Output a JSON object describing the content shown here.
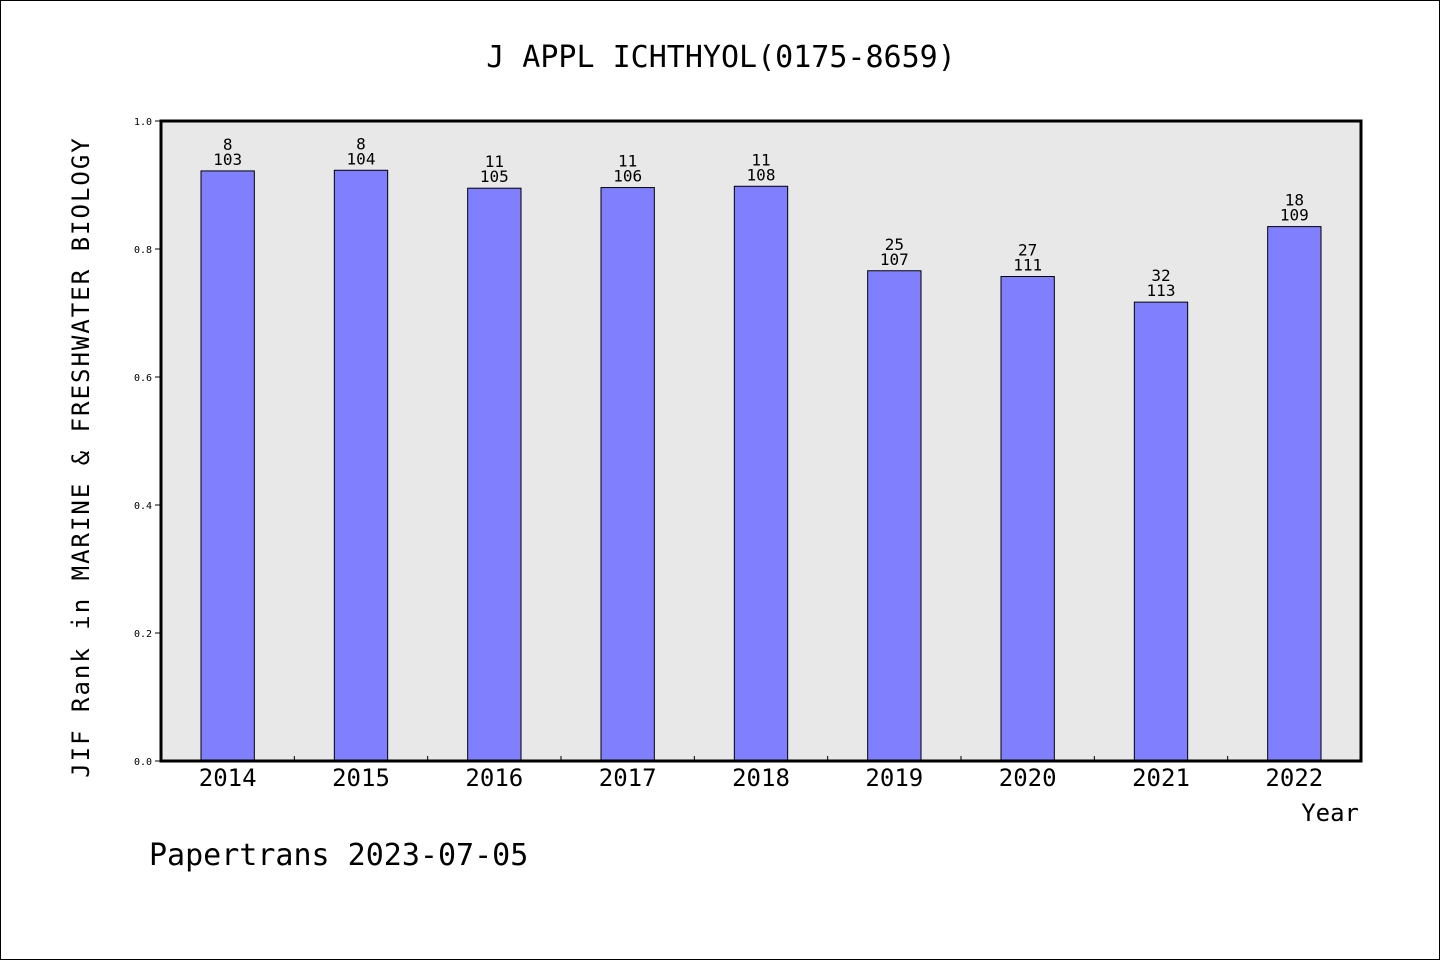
{
  "chart_data": {
    "type": "bar",
    "title": "J APPL ICHTHYOL(0175-8659)",
    "xlabel": "Year",
    "ylabel": "JIF Rank in MARINE & FRESHWATER BIOLOGY",
    "ylim": [
      0.0,
      1.0
    ],
    "yticks": [
      "0.0",
      "0.2",
      "0.4",
      "0.6",
      "0.8",
      "1.0"
    ],
    "categories": [
      "2014",
      "2015",
      "2016",
      "2017",
      "2018",
      "2019",
      "2020",
      "2021",
      "2022"
    ],
    "values": [
      0.922,
      0.923,
      0.895,
      0.896,
      0.898,
      0.766,
      0.757,
      0.717,
      0.835
    ],
    "rank": [
      "8",
      "8",
      "11",
      "11",
      "11",
      "25",
      "27",
      "32",
      "18"
    ],
    "total": [
      "103",
      "104",
      "105",
      "106",
      "108",
      "107",
      "111",
      "113",
      "109"
    ],
    "bar_color": "#8080ff",
    "plot_background": "#e8e8e8",
    "grid": false
  },
  "footer": "Papertrans 2023-07-05"
}
